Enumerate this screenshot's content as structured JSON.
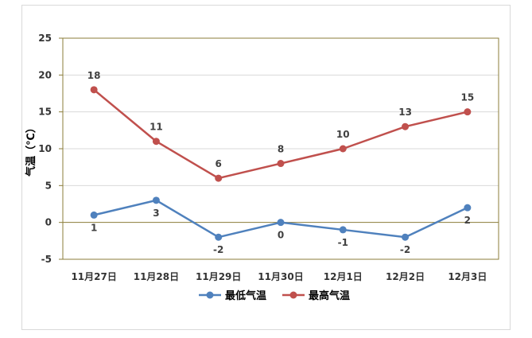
{
  "chart_data": {
    "type": "line",
    "categories": [
      "11月27日",
      "11月28日",
      "11月29日",
      "11月30日",
      "12月1日",
      "12月2日",
      "12月3日"
    ],
    "series": [
      {
        "name": "最低气温",
        "values": [
          1,
          3,
          -2,
          0,
          -1,
          -2,
          2
        ],
        "color": "#4f81bd",
        "label_position": "below"
      },
      {
        "name": "最高气温",
        "values": [
          18,
          11,
          6,
          8,
          10,
          13,
          15
        ],
        "color": "#c0504d",
        "label_position": "above"
      }
    ],
    "title": "",
    "xlabel": "",
    "ylabel": "气温（℃）",
    "ylim": [
      -5,
      25
    ],
    "yticks": [
      -5,
      0,
      5,
      10,
      15,
      20,
      25
    ],
    "grid": true,
    "legend_position": "bottom",
    "plot_border_color": "#8b7d3a",
    "grid_color": "#d9d9d9"
  }
}
